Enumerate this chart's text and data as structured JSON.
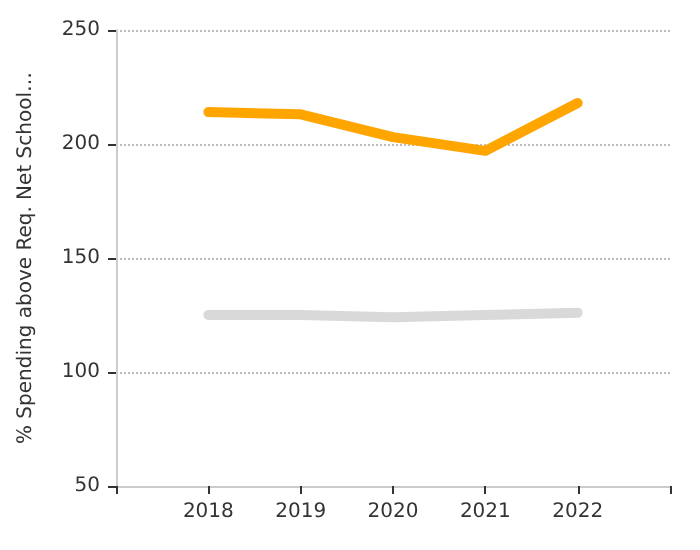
{
  "chart_data": {
    "type": "line",
    "ylabel": "% Spending above Req. Net School…",
    "x": [
      2018,
      2019,
      2020,
      2021,
      2022
    ],
    "series": [
      {
        "color": "#ffa500",
        "values": [
          214,
          213,
          203,
          197,
          218
        ]
      },
      {
        "color": "#d9d9d9",
        "values": [
          125,
          125,
          124,
          125,
          126
        ]
      }
    ],
    "xlim": [
      2017,
      2023
    ],
    "xticks": [
      {
        "value": 2017,
        "label": null
      },
      2018,
      2019,
      2020,
      2021,
      2022,
      {
        "value": 2023,
        "label": null
      }
    ],
    "ylim": [
      50,
      250
    ],
    "yticks": [
      50,
      100,
      150,
      200,
      250
    ],
    "grid": "y",
    "marker": "none",
    "line_style": "solid"
  }
}
